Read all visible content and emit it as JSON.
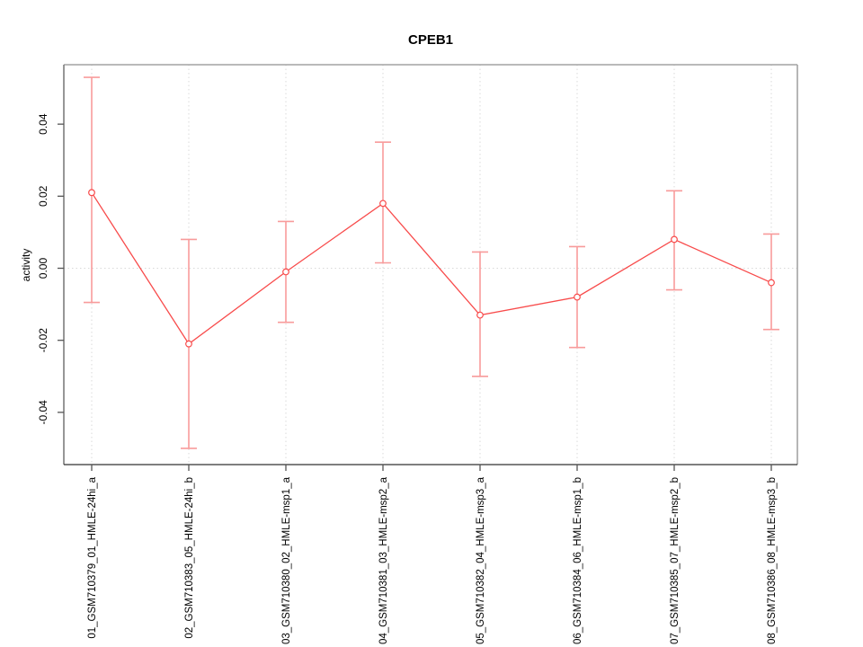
{
  "page": {
    "background": "#ffffff"
  },
  "chart_data": {
    "type": "line",
    "title": "CPEB1",
    "xlabel": "",
    "ylabel": "activity",
    "categories": [
      "01_GSM710379_01_HMLE-24hi_a",
      "02_GSM710383_05_HMLE-24hi_b",
      "03_GSM710380_02_HMLE-msp1_a",
      "04_GSM710381_03_HMLE-msp2_a",
      "05_GSM710382_04_HMLE-msp3_a",
      "06_GSM710384_06_HMLE-msp1_b",
      "07_GSM710385_07_HMLE-msp2_b",
      "08_GSM710386_08_HMLE-msp3_b"
    ],
    "series": [
      {
        "name": "activity",
        "marker": "open-circle",
        "values": [
          0.021,
          -0.021,
          -0.001,
          0.018,
          -0.013,
          -0.008,
          0.008,
          -0.004
        ],
        "upper": [
          0.053,
          0.008,
          0.013,
          0.035,
          0.0045,
          0.006,
          0.0215,
          0.0095
        ],
        "lower": [
          -0.0095,
          -0.05,
          -0.015,
          0.0015,
          -0.03,
          -0.022,
          -0.006,
          -0.017
        ]
      }
    ],
    "ylim": [
      -0.0545,
      0.0565
    ],
    "yticks": [
      0.04,
      0.02,
      0.0,
      -0.02,
      -0.04
    ],
    "ytick_labels": [
      "0.04",
      "0.02",
      "0.00",
      "-0.02",
      "-0.04"
    ],
    "grid": {
      "vertical": "dotted at each category",
      "horizontal": "dotted at y=0"
    },
    "legend": "none",
    "colors": {
      "line": "#f84b4b",
      "marker": "#f84b4b",
      "marker_fill": "#ffffff",
      "error_bar": "#f89b9b",
      "gridline": "#d9d9d9",
      "frame_top": "#a3a3a3",
      "frame_right": "#a3a3a3",
      "frame_left": "#7d7d7d",
      "frame_bottom": "#303030",
      "tick": "#555555",
      "text": "#000000"
    }
  }
}
